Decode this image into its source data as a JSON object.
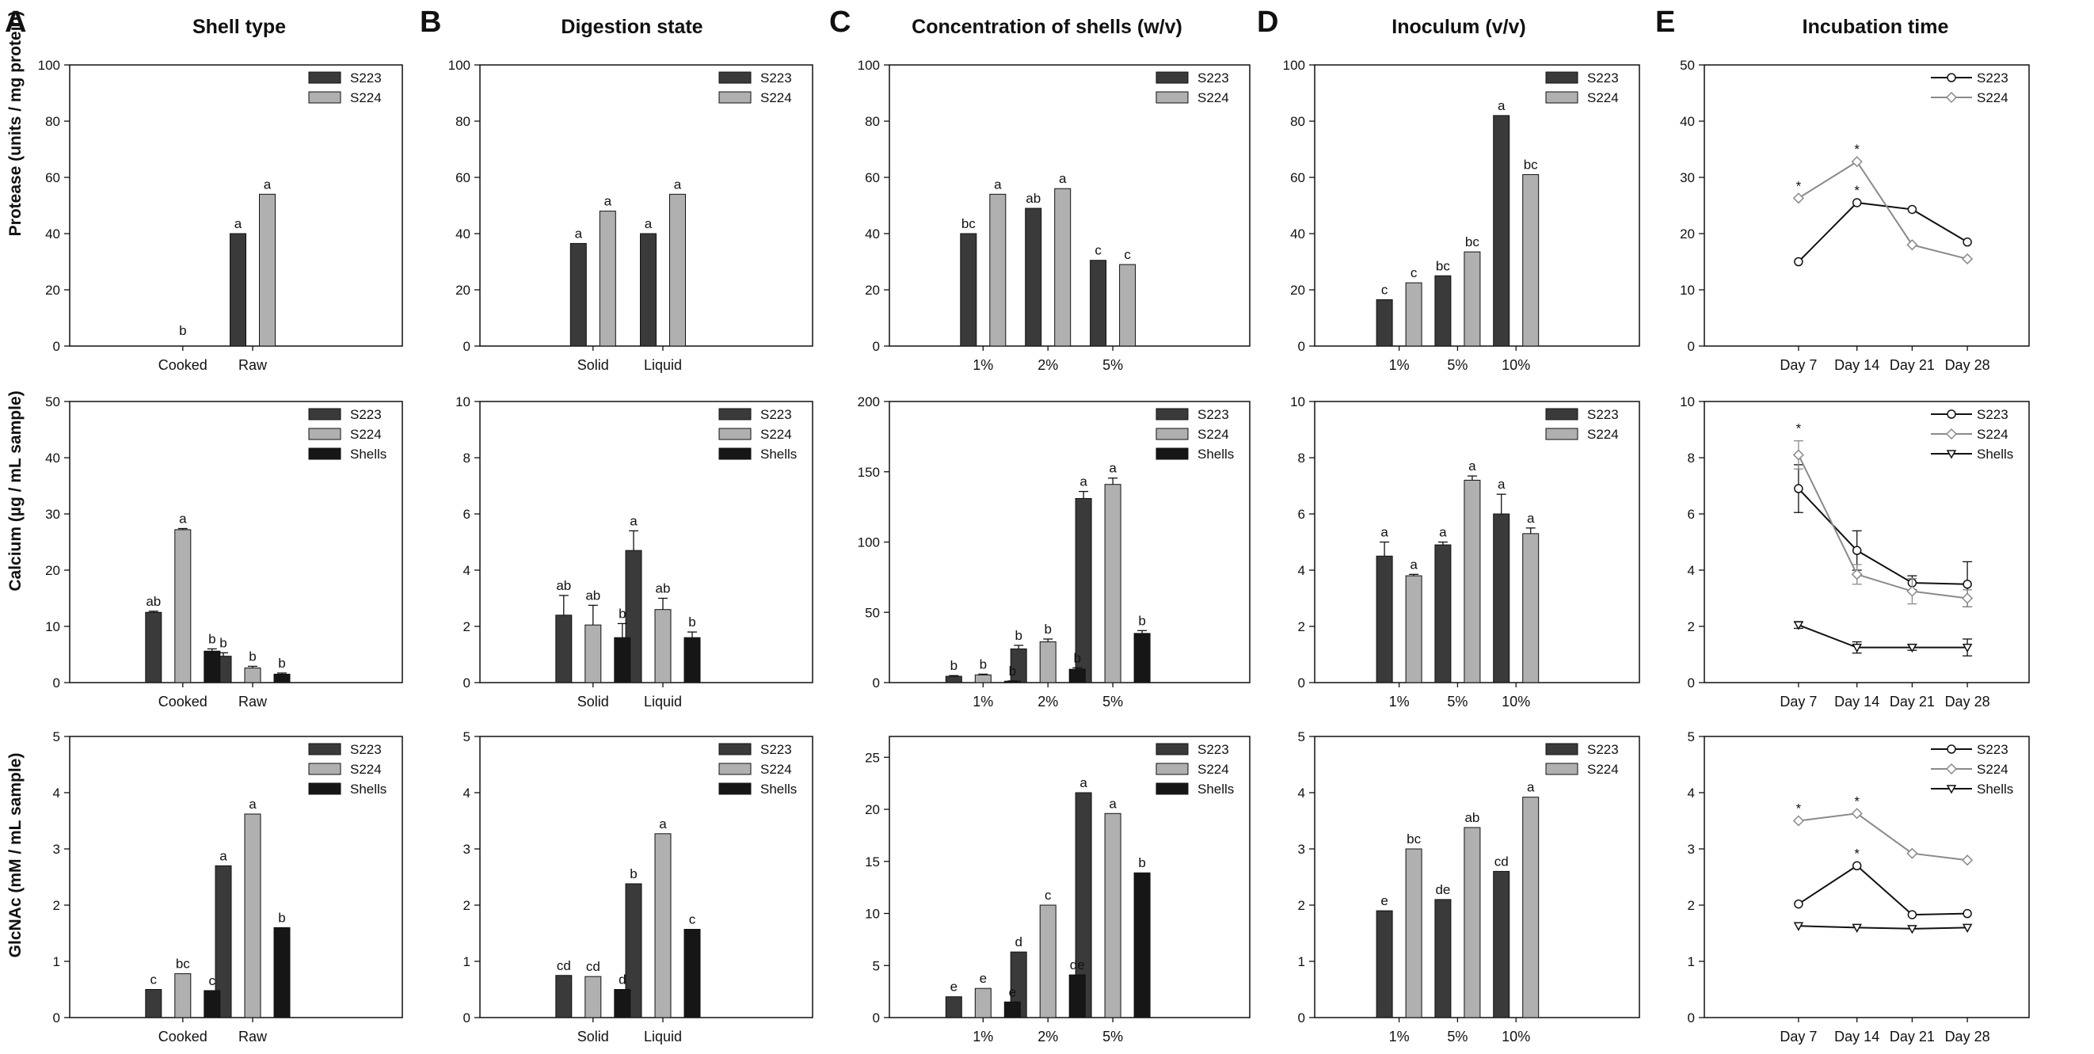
{
  "colors": {
    "S223": "#3a3a3a",
    "S224": "#b0b0b0",
    "Shells": "#161616",
    "S223_line": "#111111",
    "S224_line": "#8a8a8a",
    "Shells_line": "#111111"
  },
  "panel_letters": [
    "A",
    "B",
    "C",
    "D",
    "E"
  ],
  "column_titles": [
    "Shell type",
    "Digestion state",
    "Concentration of shells (w/v)",
    "Inoculum (v/v)",
    "Incubation time"
  ],
  "row_ylabels": [
    "Protease (units / mg protein)",
    "Calcium (µg / mL sample)",
    "GlcNAc (mM / mL sample)"
  ],
  "chart_data": [
    {
      "id": "A1",
      "type": "bar",
      "row": 0,
      "col": 0,
      "categories": [
        "Cooked",
        "Raw"
      ],
      "ylim": [
        0,
        100
      ],
      "yticks": [
        0,
        20,
        40,
        60,
        80,
        100
      ],
      "legend": [
        "S223",
        "S224"
      ],
      "series": [
        {
          "name": "S223",
          "values": [
            0,
            40
          ],
          "errors": [
            0,
            0
          ],
          "labels": [
            "",
            "a"
          ]
        },
        {
          "name": "S224",
          "values": [
            0,
            54
          ],
          "errors": [
            0,
            0
          ],
          "labels": [
            "",
            "a"
          ]
        }
      ],
      "annotations": [
        {
          "text": "b",
          "category": 0
        }
      ]
    },
    {
      "id": "A2",
      "type": "bar",
      "row": 1,
      "col": 0,
      "categories": [
        "Cooked",
        "Raw"
      ],
      "ylim": [
        0,
        50
      ],
      "yticks": [
        0,
        10,
        20,
        30,
        40,
        50
      ],
      "legend": [
        "S223",
        "S224",
        "Shells"
      ],
      "series": [
        {
          "name": "S223",
          "values": [
            12.5,
            4.7
          ],
          "errors": [
            0.2,
            0.6
          ],
          "labels": [
            "ab",
            "b"
          ]
        },
        {
          "name": "S224",
          "values": [
            27.2,
            2.6
          ],
          "errors": [
            0.2,
            0.3
          ],
          "labels": [
            "a",
            "b"
          ]
        },
        {
          "name": "Shells",
          "values": [
            5.6,
            1.5
          ],
          "errors": [
            0.4,
            0.2
          ],
          "labels": [
            "b",
            "b"
          ]
        }
      ]
    },
    {
      "id": "A3",
      "type": "bar",
      "row": 2,
      "col": 0,
      "categories": [
        "Cooked",
        "Raw"
      ],
      "ylim": [
        0,
        5
      ],
      "yticks": [
        0,
        1,
        2,
        3,
        4,
        5
      ],
      "legend": [
        "S223",
        "S224",
        "Shells"
      ],
      "series": [
        {
          "name": "S223",
          "values": [
            0.5,
            2.7
          ],
          "errors": [
            0,
            0
          ],
          "labels": [
            "c",
            "a"
          ]
        },
        {
          "name": "S224",
          "values": [
            0.78,
            3.62
          ],
          "errors": [
            0,
            0
          ],
          "labels": [
            "bc",
            "a"
          ]
        },
        {
          "name": "Shells",
          "values": [
            0.48,
            1.6
          ],
          "errors": [
            0,
            0
          ],
          "labels": [
            "c",
            "b"
          ]
        }
      ]
    },
    {
      "id": "B1",
      "type": "bar",
      "row": 0,
      "col": 1,
      "categories": [
        "Solid",
        "Liquid"
      ],
      "ylim": [
        0,
        100
      ],
      "yticks": [
        0,
        20,
        40,
        60,
        80,
        100
      ],
      "legend": [
        "S223",
        "S224"
      ],
      "series": [
        {
          "name": "S223",
          "values": [
            36.5,
            40
          ],
          "errors": [
            0,
            0
          ],
          "labels": [
            "a",
            "a"
          ]
        },
        {
          "name": "S224",
          "values": [
            48,
            54
          ],
          "errors": [
            0,
            0
          ],
          "labels": [
            "a",
            "a"
          ]
        }
      ]
    },
    {
      "id": "B2",
      "type": "bar",
      "row": 1,
      "col": 1,
      "categories": [
        "Solid",
        "Liquid"
      ],
      "ylim": [
        0,
        10
      ],
      "yticks": [
        0,
        2,
        4,
        6,
        8,
        10
      ],
      "legend": [
        "S223",
        "S224",
        "Shells"
      ],
      "series": [
        {
          "name": "S223",
          "values": [
            2.4,
            4.7
          ],
          "errors": [
            0.7,
            0.7
          ],
          "labels": [
            "ab",
            "a"
          ]
        },
        {
          "name": "S224",
          "values": [
            2.05,
            2.6
          ],
          "errors": [
            0.7,
            0.4
          ],
          "labels": [
            "ab",
            "ab"
          ]
        },
        {
          "name": "Shells",
          "values": [
            1.6,
            1.6
          ],
          "errors": [
            0.5,
            0.2
          ],
          "labels": [
            "b",
            "b"
          ]
        }
      ]
    },
    {
      "id": "B3",
      "type": "bar",
      "row": 2,
      "col": 1,
      "categories": [
        "Solid",
        "Liquid"
      ],
      "ylim": [
        0,
        5
      ],
      "yticks": [
        0,
        1,
        2,
        3,
        4,
        5
      ],
      "legend": [
        "S223",
        "S224",
        "Shells"
      ],
      "series": [
        {
          "name": "S223",
          "values": [
            0.75,
            2.38
          ],
          "errors": [
            0,
            0
          ],
          "labels": [
            "cd",
            "b"
          ]
        },
        {
          "name": "S224",
          "values": [
            0.73,
            3.27
          ],
          "errors": [
            0,
            0
          ],
          "labels": [
            "cd",
            "a"
          ]
        },
        {
          "name": "Shells",
          "values": [
            0.5,
            1.57
          ],
          "errors": [
            0,
            0
          ],
          "labels": [
            "d",
            "c"
          ]
        }
      ]
    },
    {
      "id": "C1",
      "type": "bar",
      "row": 0,
      "col": 2,
      "categories": [
        "1%",
        "2%",
        "5%"
      ],
      "ylim": [
        0,
        100
      ],
      "yticks": [
        0,
        20,
        40,
        60,
        80,
        100
      ],
      "legend": [
        "S223",
        "S224"
      ],
      "series": [
        {
          "name": "S223",
          "values": [
            40,
            49,
            30.5
          ],
          "errors": [
            0,
            0,
            0
          ],
          "labels": [
            "bc",
            "ab",
            "c"
          ]
        },
        {
          "name": "S224",
          "values": [
            54,
            56,
            29
          ],
          "errors": [
            0,
            0,
            0
          ],
          "labels": [
            "a",
            "a",
            "c"
          ]
        }
      ]
    },
    {
      "id": "C2",
      "type": "bar",
      "row": 1,
      "col": 2,
      "categories": [
        "1%",
        "2%",
        "5%"
      ],
      "ylim": [
        0,
        200
      ],
      "yticks": [
        0,
        50,
        100,
        150,
        200
      ],
      "legend": [
        "S223",
        "S224",
        "Shells"
      ],
      "series": [
        {
          "name": "S223",
          "values": [
            4.5,
            24,
            131
          ],
          "errors": [
            0.5,
            2.5,
            5
          ],
          "labels": [
            "b",
            "b",
            "a"
          ]
        },
        {
          "name": "S224",
          "values": [
            5.5,
            29,
            141
          ],
          "errors": [
            0.5,
            2,
            4.5
          ],
          "labels": [
            "b",
            "b",
            "a"
          ]
        },
        {
          "name": "Shells",
          "values": [
            1,
            9.5,
            35
          ],
          "errors": [
            0.2,
            1,
            2
          ],
          "labels": [
            "b",
            "b",
            "b"
          ]
        }
      ]
    },
    {
      "id": "C3",
      "type": "bar",
      "row": 2,
      "col": 2,
      "categories": [
        "1%",
        "2%",
        "5%"
      ],
      "ylim": [
        0,
        27
      ],
      "yticks": [
        0,
        5,
        10,
        15,
        20,
        25
      ],
      "legend": [
        "S223",
        "S224",
        "Shells"
      ],
      "series": [
        {
          "name": "S223",
          "values": [
            2,
            6.3,
            21.6
          ],
          "errors": [
            0,
            0,
            0
          ],
          "labels": [
            "e",
            "d",
            "a"
          ]
        },
        {
          "name": "S224",
          "values": [
            2.8,
            10.8,
            19.6
          ],
          "errors": [
            0,
            0,
            0
          ],
          "labels": [
            "e",
            "c",
            "a"
          ]
        },
        {
          "name": "Shells",
          "values": [
            1.5,
            4.1,
            13.9
          ],
          "errors": [
            0,
            0,
            0
          ],
          "labels": [
            "e",
            "de",
            "b"
          ]
        }
      ]
    },
    {
      "id": "D1",
      "type": "bar",
      "row": 0,
      "col": 3,
      "categories": [
        "1%",
        "5%",
        "10%"
      ],
      "ylim": [
        0,
        100
      ],
      "yticks": [
        0,
        20,
        40,
        60,
        80,
        100
      ],
      "legend": [
        "S223",
        "S224"
      ],
      "series": [
        {
          "name": "S223",
          "values": [
            16.5,
            25,
            82
          ],
          "errors": [
            0,
            0,
            0
          ],
          "labels": [
            "c",
            "bc",
            "a"
          ]
        },
        {
          "name": "S224",
          "values": [
            22.5,
            33.5,
            61
          ],
          "errors": [
            0,
            0,
            0
          ],
          "labels": [
            "c",
            "bc",
            "bc"
          ]
        }
      ]
    },
    {
      "id": "D2",
      "type": "bar",
      "row": 1,
      "col": 3,
      "categories": [
        "1%",
        "5%",
        "10%"
      ],
      "ylim": [
        0,
        10
      ],
      "yticks": [
        0,
        2,
        4,
        6,
        8,
        10
      ],
      "legend": [
        "S223",
        "S224"
      ],
      "series": [
        {
          "name": "S223",
          "values": [
            4.5,
            4.9,
            6.0
          ],
          "errors": [
            0.5,
            0.1,
            0.7
          ],
          "labels": [
            "a",
            "a",
            "a"
          ]
        },
        {
          "name": "S224",
          "values": [
            3.8,
            7.2,
            5.3
          ],
          "errors": [
            0.05,
            0.15,
            0.2
          ],
          "labels": [
            "a",
            "a",
            "a"
          ]
        }
      ]
    },
    {
      "id": "D3",
      "type": "bar",
      "row": 2,
      "col": 3,
      "categories": [
        "1%",
        "5%",
        "10%"
      ],
      "ylim": [
        0,
        5
      ],
      "yticks": [
        0,
        1,
        2,
        3,
        4,
        5
      ],
      "legend": [
        "S223",
        "S224"
      ],
      "series": [
        {
          "name": "S223",
          "values": [
            1.9,
            2.1,
            2.6
          ],
          "errors": [
            0,
            0,
            0
          ],
          "labels": [
            "e",
            "de",
            "cd"
          ]
        },
        {
          "name": "S224",
          "values": [
            3.0,
            3.38,
            3.92
          ],
          "errors": [
            0,
            0,
            0
          ],
          "labels": [
            "bc",
            "ab",
            "a"
          ]
        }
      ]
    },
    {
      "id": "E1",
      "type": "line",
      "row": 0,
      "col": 4,
      "categories": [
        "Day 7",
        "Day 14",
        "Day 21",
        "Day 28"
      ],
      "ylim": [
        0,
        50
      ],
      "yticks": [
        0,
        10,
        20,
        30,
        40,
        50
      ],
      "legend": [
        "S223",
        "S224"
      ],
      "series": [
        {
          "name": "S223",
          "values": [
            15,
            25.5,
            24.3,
            18.5
          ],
          "errors": [
            0,
            0,
            0,
            0
          ],
          "labels": [
            "",
            "*",
            "",
            ""
          ]
        },
        {
          "name": "S224",
          "values": [
            26.3,
            32.8,
            18,
            15.5
          ],
          "errors": [
            0,
            0,
            0,
            0
          ],
          "labels": [
            "*",
            "*",
            "",
            ""
          ]
        }
      ]
    },
    {
      "id": "E2",
      "type": "line",
      "row": 1,
      "col": 4,
      "categories": [
        "Day 7",
        "Day 14",
        "Day 21",
        "Day 28"
      ],
      "ylim": [
        0,
        10
      ],
      "yticks": [
        0,
        2,
        4,
        6,
        8,
        10
      ],
      "legend": [
        "S223",
        "S224",
        "Shells"
      ],
      "series": [
        {
          "name": "S223",
          "values": [
            6.9,
            4.7,
            3.55,
            3.5
          ],
          "errors": [
            0.85,
            0.7,
            0.25,
            0.8
          ],
          "labels": [
            "",
            "",
            "",
            ""
          ]
        },
        {
          "name": "S224",
          "values": [
            8.1,
            3.85,
            3.25,
            3.0
          ],
          "errors": [
            0.5,
            0.35,
            0.45,
            0.3
          ],
          "labels": [
            "*",
            "",
            "",
            ""
          ]
        },
        {
          "name": "Shells",
          "values": [
            2.05,
            1.25,
            1.25,
            1.25
          ],
          "errors": [
            0.12,
            0.2,
            0.1,
            0.3
          ],
          "labels": [
            "",
            "",
            "",
            ""
          ]
        }
      ]
    },
    {
      "id": "E3",
      "type": "line",
      "row": 2,
      "col": 4,
      "categories": [
        "Day 7",
        "Day 14",
        "Day 21",
        "Day 28"
      ],
      "ylim": [
        0,
        5
      ],
      "yticks": [
        0,
        1,
        2,
        3,
        4,
        5
      ],
      "legend": [
        "S223",
        "S224",
        "Shells"
      ],
      "series": [
        {
          "name": "S223",
          "values": [
            2.02,
            2.7,
            1.83,
            1.85
          ],
          "errors": [
            0,
            0,
            0,
            0
          ],
          "labels": [
            "",
            "*",
            "",
            ""
          ]
        },
        {
          "name": "S224",
          "values": [
            3.5,
            3.63,
            2.92,
            2.8
          ],
          "errors": [
            0,
            0,
            0,
            0
          ],
          "labels": [
            "*",
            "*",
            "",
            ""
          ]
        },
        {
          "name": "Shells",
          "values": [
            1.63,
            1.6,
            1.58,
            1.6
          ],
          "errors": [
            0,
            0,
            0,
            0
          ],
          "labels": [
            "",
            "",
            "",
            ""
          ]
        }
      ]
    }
  ]
}
